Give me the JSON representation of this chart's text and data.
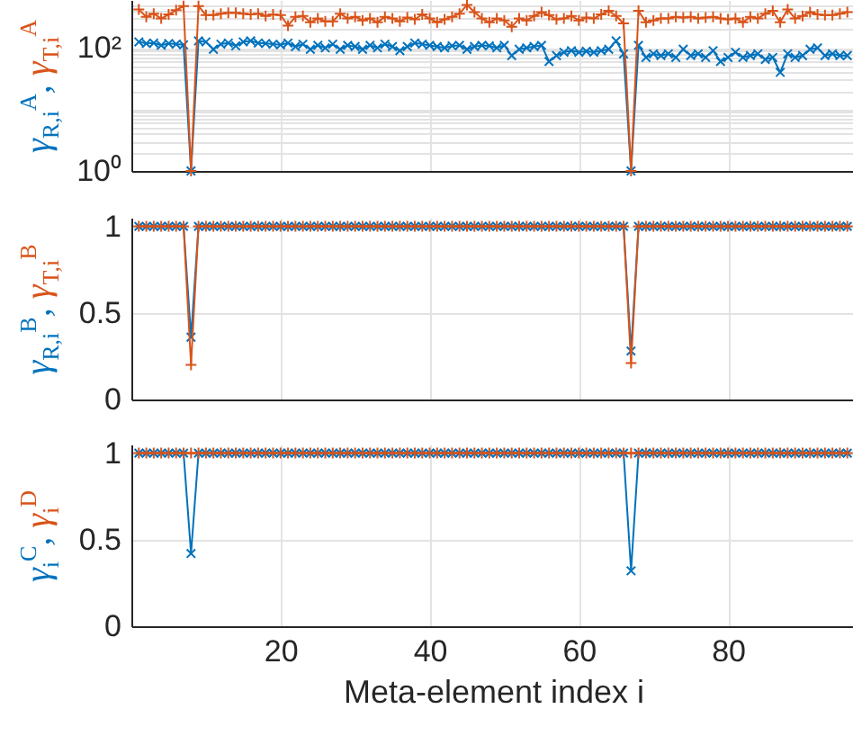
{
  "chart_data": [
    {
      "type": "line",
      "ylabel": "γ$_{R,i}$$^{A}$, γ$_{T,i}$$^{A}$",
      "log": "y",
      "grid": true,
      "marker": "cross",
      "tick_labels": "y",
      "xlim": [
        0,
        97
      ],
      "xticks": [
        20,
        40,
        60,
        80
      ],
      "ylim": [
        1,
        600
      ],
      "yticks": [
        {
          "value": 1,
          "label": "10⁰"
        },
        {
          "value": 2,
          "label": null
        },
        {
          "value": 3,
          "label": null
        },
        {
          "value": 4,
          "label": null
        },
        {
          "value": 5,
          "label": null
        },
        {
          "value": 6,
          "label": null
        },
        {
          "value": 7,
          "label": null
        },
        {
          "value": 8,
          "label": null
        },
        {
          "value": 9,
          "label": null
        },
        {
          "value": 10,
          "label": null
        },
        {
          "value": 20,
          "label": null
        },
        {
          "value": 30,
          "label": null
        },
        {
          "value": 40,
          "label": null
        },
        {
          "value": 50,
          "label": null
        },
        {
          "value": 60,
          "label": null
        },
        {
          "value": 70,
          "label": null
        },
        {
          "value": 80,
          "label": null
        },
        {
          "value": 90,
          "label": null
        },
        {
          "value": 100,
          "label": "10²"
        },
        {
          "value": 200,
          "label": null
        },
        {
          "value": 300,
          "label": null
        },
        {
          "value": 400,
          "label": null
        },
        {
          "value": 500,
          "label": null
        }
      ],
      "x": [
        1,
        2,
        3,
        4,
        5,
        6,
        7,
        8,
        9,
        10,
        11,
        12,
        13,
        14,
        15,
        16,
        17,
        18,
        19,
        20,
        21,
        22,
        23,
        24,
        25,
        26,
        27,
        28,
        29,
        30,
        31,
        32,
        33,
        34,
        35,
        36,
        37,
        38,
        39,
        40,
        41,
        42,
        43,
        44,
        45,
        46,
        47,
        48,
        49,
        50,
        51,
        52,
        53,
        54,
        55,
        56,
        57,
        58,
        59,
        60,
        61,
        62,
        63,
        64,
        65,
        66,
        67,
        68,
        69,
        70,
        71,
        72,
        73,
        74,
        75,
        76,
        77,
        78,
        79,
        80,
        81,
        82,
        83,
        84,
        85,
        86,
        87,
        88,
        89,
        90,
        91,
        92,
        93,
        94,
        95,
        96
      ],
      "series": [
        {
          "color": "#0072bd",
          "values": [
            125,
            118,
            120,
            110,
            118,
            115,
            112,
            1,
            130,
            125,
            95,
            115,
            120,
            108,
            125,
            130,
            120,
            118,
            115,
            112,
            120,
            105,
            115,
            95,
            110,
            100,
            115,
            95,
            110,
            105,
            95,
            110,
            100,
            115,
            105,
            90,
            105,
            120,
            115,
            110,
            105,
            100,
            108,
            110,
            95,
            105,
            110,
            108,
            100,
            110,
            75,
            95,
            100,
            105,
            110,
            60,
            75,
            85,
            90,
            85,
            88,
            85,
            90,
            95,
            130,
            80,
            1,
            110,
            70,
            80,
            75,
            80,
            70,
            95,
            75,
            80,
            70,
            90,
            60,
            70,
            85,
            70,
            75,
            80,
            65,
            70,
            40,
            80,
            70,
            75,
            95,
            100,
            75,
            80,
            75,
            75
          ]
        },
        {
          "color": "#d95319",
          "values": [
            420,
            320,
            360,
            300,
            350,
            410,
            480,
            1,
            480,
            340,
            340,
            360,
            370,
            370,
            360,
            350,
            360,
            330,
            350,
            340,
            230,
            320,
            330,
            260,
            300,
            270,
            270,
            360,
            300,
            320,
            280,
            300,
            260,
            320,
            300,
            270,
            310,
            290,
            350,
            300,
            260,
            290,
            320,
            360,
            500,
            380,
            300,
            260,
            300,
            280,
            220,
            300,
            280,
            330,
            380,
            340,
            290,
            300,
            330,
            280,
            310,
            300,
            350,
            400,
            330,
            250,
            1,
            400,
            260,
            280,
            300,
            300,
            320,
            310,
            320,
            300,
            310,
            320,
            300,
            290,
            300,
            260,
            320,
            300,
            360,
            400,
            260,
            420,
            300,
            330,
            380,
            350,
            340,
            340,
            360,
            380
          ]
        }
      ]
    },
    {
      "type": "line",
      "ylabel": "γ$_{R,i}$$^{B}$, γ$_{T,i}$$^{B}$",
      "grid": true,
      "marker": "cross",
      "tick_labels": "y",
      "xlim": [
        0,
        97
      ],
      "xticks": [
        20,
        40,
        60,
        80
      ],
      "ylim": [
        0,
        1.05
      ],
      "yticks": [
        0,
        0.5,
        1
      ],
      "x": [
        1,
        2,
        3,
        4,
        5,
        6,
        7,
        8,
        9,
        10,
        11,
        12,
        13,
        14,
        15,
        16,
        17,
        18,
        19,
        20,
        21,
        22,
        23,
        24,
        25,
        26,
        27,
        28,
        29,
        30,
        31,
        32,
        33,
        34,
        35,
        36,
        37,
        38,
        39,
        40,
        41,
        42,
        43,
        44,
        45,
        46,
        47,
        48,
        49,
        50,
        51,
        52,
        53,
        54,
        55,
        56,
        57,
        58,
        59,
        60,
        61,
        62,
        63,
        64,
        65,
        66,
        67,
        68,
        69,
        70,
        71,
        72,
        73,
        74,
        75,
        76,
        77,
        78,
        79,
        80,
        81,
        82,
        83,
        84,
        85,
        86,
        87,
        88,
        89,
        90,
        91,
        92,
        93,
        94,
        95,
        96
      ],
      "series": [
        {
          "color": "#0072bd",
          "values": [
            1,
            1,
            1,
            1,
            1,
            1,
            1,
            0.36,
            1,
            1,
            1,
            1,
            1,
            1,
            1,
            1,
            1,
            1,
            1,
            1,
            1,
            1,
            1,
            1,
            1,
            1,
            1,
            1,
            1,
            1,
            1,
            1,
            1,
            1,
            1,
            1,
            1,
            1,
            1,
            1,
            1,
            1,
            1,
            1,
            1,
            1,
            1,
            1,
            1,
            1,
            1,
            1,
            1,
            1,
            1,
            1,
            1,
            1,
            1,
            1,
            1,
            1,
            1,
            1,
            1,
            1,
            0.28,
            1,
            1,
            1,
            1,
            1,
            1,
            1,
            1,
            1,
            1,
            1,
            1,
            1,
            1,
            1,
            1,
            1,
            1,
            1,
            1,
            1,
            1,
            1,
            1,
            1,
            1,
            1,
            1,
            1
          ]
        },
        {
          "color": "#d95319",
          "values": [
            1,
            1,
            1,
            1,
            1,
            1,
            1,
            0.2,
            1,
            1,
            1,
            1,
            1,
            1,
            1,
            1,
            1,
            1,
            1,
            1,
            1,
            1,
            1,
            1,
            1,
            1,
            1,
            1,
            1,
            1,
            1,
            1,
            1,
            1,
            1,
            1,
            1,
            1,
            1,
            1,
            1,
            1,
            1,
            1,
            1,
            1,
            1,
            1,
            1,
            1,
            1,
            1,
            1,
            1,
            1,
            1,
            1,
            1,
            1,
            1,
            1,
            1,
            1,
            1,
            1,
            1,
            0.21,
            1,
            1,
            1,
            1,
            1,
            1,
            1,
            1,
            1,
            1,
            1,
            1,
            1,
            1,
            1,
            1,
            1,
            1,
            1,
            1,
            1,
            1,
            1,
            1,
            1,
            1,
            1,
            1,
            1
          ]
        }
      ]
    },
    {
      "type": "line",
      "ylabel": "γ$_{i}$$^{C}$, γ$_{i}$$^{D}$",
      "xlabel": "Meta-element index i",
      "grid": true,
      "marker": "cross",
      "xlim": [
        0,
        97
      ],
      "xticks": [
        20,
        40,
        60,
        80
      ],
      "ylim": [
        0,
        1.05
      ],
      "yticks": [
        0,
        0.5,
        1
      ],
      "x": [
        1,
        2,
        3,
        4,
        5,
        6,
        7,
        8,
        9,
        10,
        11,
        12,
        13,
        14,
        15,
        16,
        17,
        18,
        19,
        20,
        21,
        22,
        23,
        24,
        25,
        26,
        27,
        28,
        29,
        30,
        31,
        32,
        33,
        34,
        35,
        36,
        37,
        38,
        39,
        40,
        41,
        42,
        43,
        44,
        45,
        46,
        47,
        48,
        49,
        50,
        51,
        52,
        53,
        54,
        55,
        56,
        57,
        58,
        59,
        60,
        61,
        62,
        63,
        64,
        65,
        66,
        67,
        68,
        69,
        70,
        71,
        72,
        73,
        74,
        75,
        76,
        77,
        78,
        79,
        80,
        81,
        82,
        83,
        84,
        85,
        86,
        87,
        88,
        89,
        90,
        91,
        92,
        93,
        94,
        95,
        96
      ],
      "series": [
        {
          "color": "#0072bd",
          "values": [
            1,
            1,
            1,
            1,
            1,
            1,
            1,
            0.42,
            1,
            1,
            1,
            1,
            1,
            1,
            1,
            1,
            1,
            1,
            1,
            1,
            1,
            1,
            1,
            1,
            1,
            1,
            1,
            1,
            1,
            1,
            1,
            1,
            1,
            1,
            1,
            1,
            1,
            1,
            1,
            1,
            1,
            1,
            1,
            1,
            1,
            1,
            1,
            1,
            1,
            1,
            1,
            1,
            1,
            1,
            1,
            1,
            1,
            1,
            1,
            1,
            1,
            1,
            1,
            1,
            1,
            1,
            0.32,
            1,
            1,
            1,
            1,
            1,
            1,
            1,
            1,
            1,
            1,
            1,
            1,
            1,
            1,
            1,
            1,
            1,
            1,
            1,
            1,
            1,
            1,
            1,
            1,
            1,
            1,
            1,
            1,
            1
          ]
        },
        {
          "color": "#d95319",
          "values": [
            1,
            1,
            1,
            1,
            1,
            1,
            1,
            1,
            1,
            1,
            1,
            1,
            1,
            1,
            1,
            1,
            1,
            1,
            1,
            1,
            1,
            1,
            1,
            1,
            1,
            1,
            1,
            1,
            1,
            1,
            1,
            1,
            1,
            1,
            1,
            1,
            1,
            1,
            1,
            1,
            1,
            1,
            1,
            1,
            1,
            1,
            1,
            1,
            1,
            1,
            1,
            1,
            1,
            1,
            1,
            1,
            1,
            1,
            1,
            1,
            1,
            1,
            1,
            1,
            1,
            1,
            1,
            1,
            1,
            1,
            1,
            1,
            1,
            1,
            1,
            1,
            1,
            1,
            1,
            1,
            1,
            1,
            1,
            1,
            1,
            1,
            1,
            1,
            1,
            1,
            1,
            1,
            1,
            1,
            1,
            1
          ]
        }
      ]
    }
  ]
}
